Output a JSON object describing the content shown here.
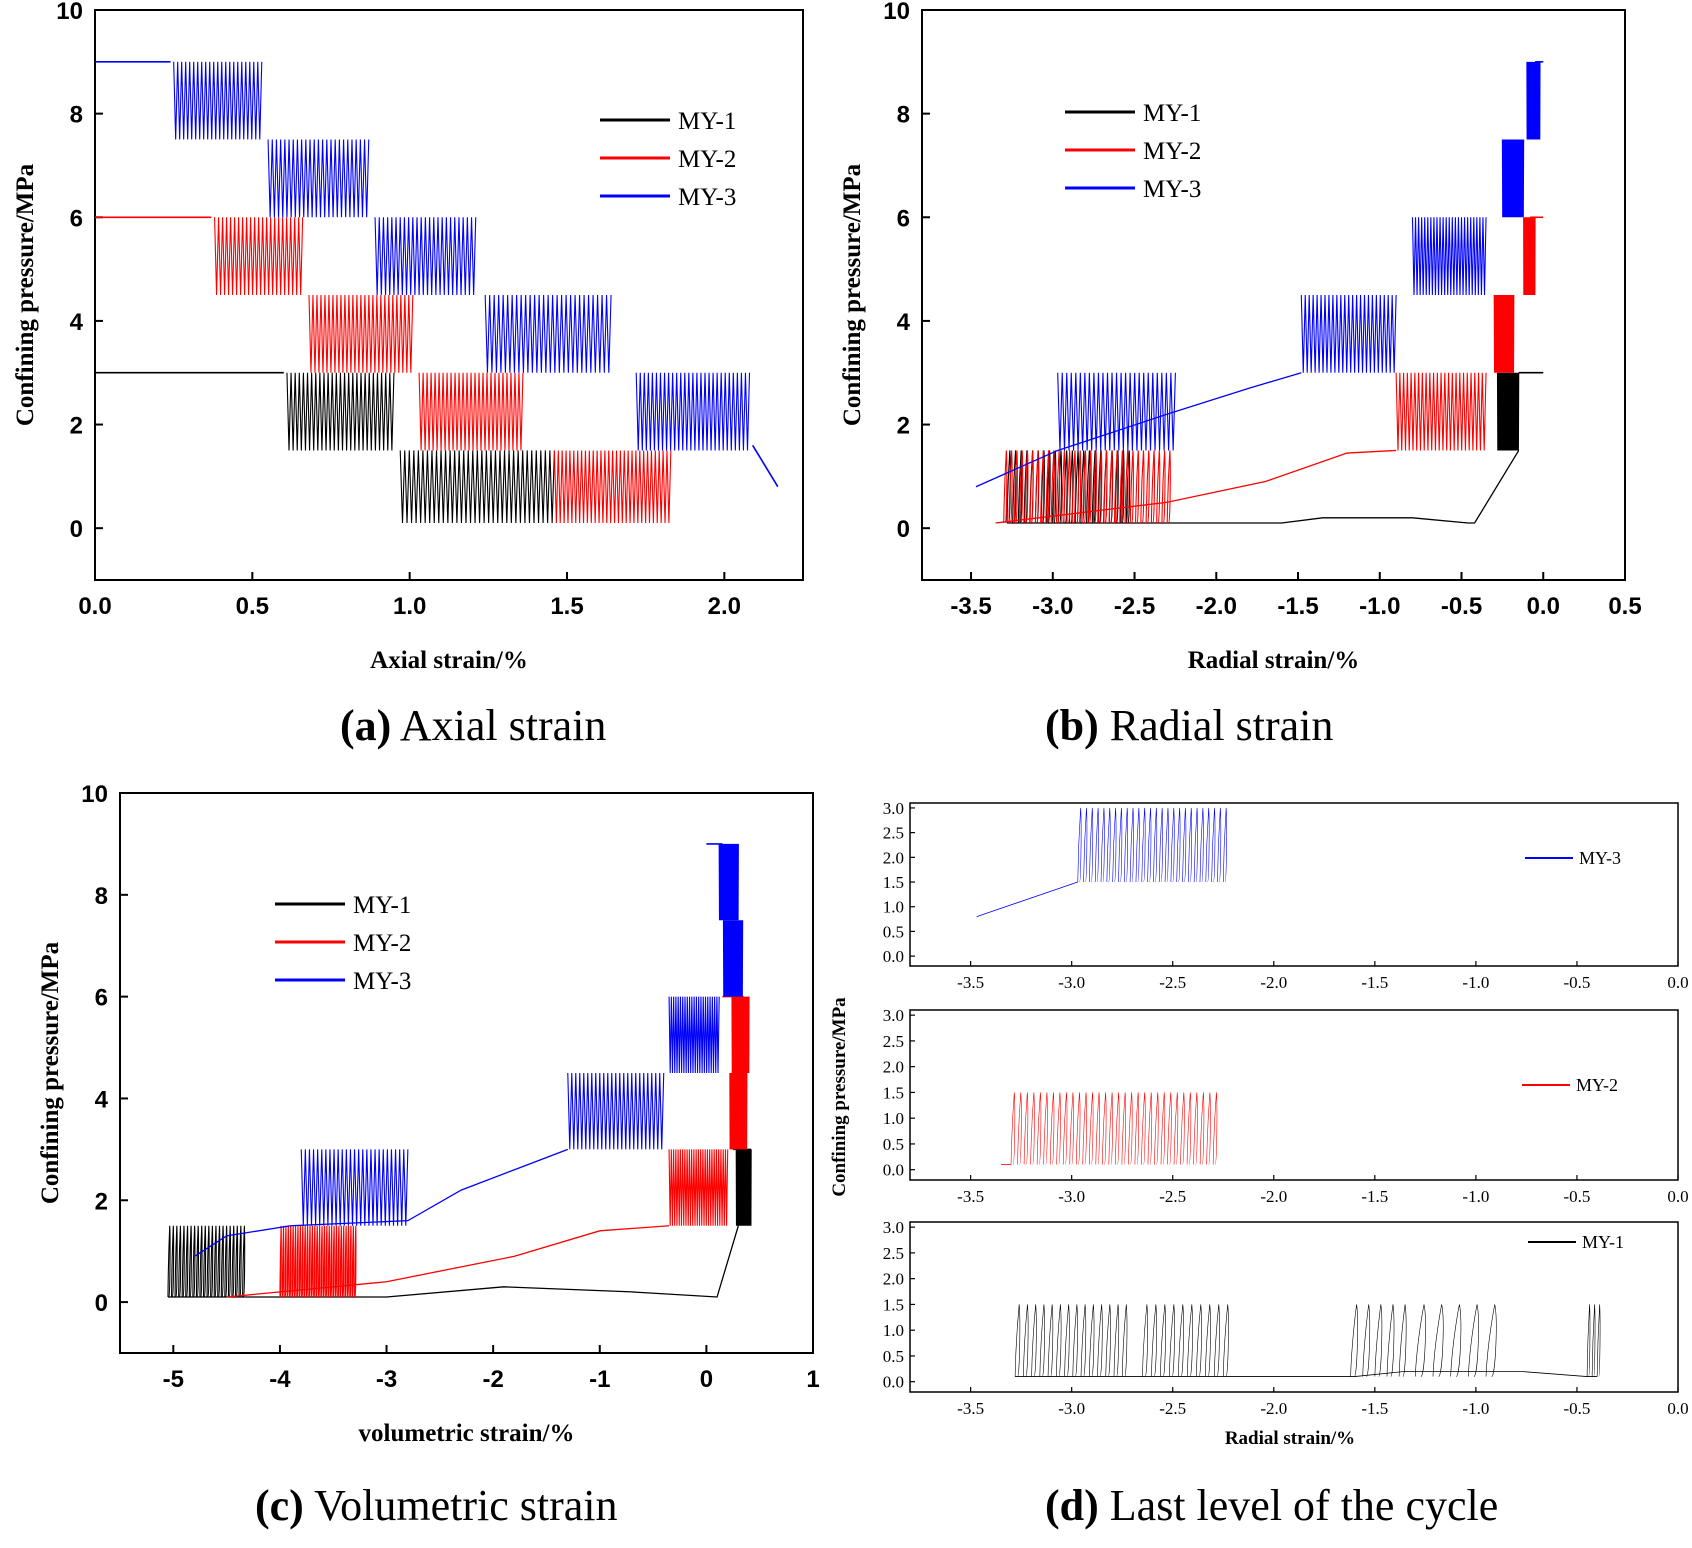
{
  "figure": {
    "captions": {
      "a": {
        "letter": "(a)",
        "text": "Axial strain"
      },
      "b": {
        "letter": "(b)",
        "text": "Radial strain"
      },
      "c": {
        "letter": "(c)",
        "text": "Volumetric strain"
      },
      "d": {
        "letter": "(d)",
        "text": "Last level of the cycle"
      }
    },
    "colors": {
      "MY-1": "#000000",
      "MY-2": "#ff0000",
      "MY-3": "#0000ff"
    }
  },
  "chart_data": [
    {
      "id": "a",
      "type": "line",
      "title": "(a) Axial strain",
      "xlabel": "Axial strain/%",
      "ylabel": "Confining pressure/MPa",
      "xlim": [
        0,
        2.25
      ],
      "ylim": [
        -1,
        10
      ],
      "xticks": [
        0.0,
        0.5,
        1.0,
        1.5,
        2.0
      ],
      "xtick_labels": [
        "0.0",
        "0.5",
        "1.0",
        "1.5",
        "2.0"
      ],
      "yticks": [
        0,
        2,
        4,
        6,
        8,
        10
      ],
      "ytick_labels": [
        "0",
        "2",
        "4",
        "6",
        "8",
        "10"
      ],
      "legend": [
        "MY-1",
        "MY-2",
        "MY-3"
      ],
      "legend_position": "top-right",
      "series": [
        {
          "name": "MY-1",
          "color": "#000000",
          "initial": [
            [
              0,
              3.0
            ],
            [
              0.6,
              3.0
            ]
          ],
          "stages": [
            {
              "x0": 0.61,
              "x1": 0.95,
              "lo": 1.5,
              "hi": 3.0,
              "n": 26
            },
            {
              "x0": 0.97,
              "x1": 1.46,
              "lo": 0.1,
              "hi": 1.5,
              "n": 34
            }
          ]
        },
        {
          "name": "MY-2",
          "color": "#ff0000",
          "initial": [
            [
              0,
              6.0
            ],
            [
              0.37,
              6.0
            ]
          ],
          "stages": [
            {
              "x0": 0.38,
              "x1": 0.66,
              "lo": 4.5,
              "hi": 6.0,
              "n": 22
            },
            {
              "x0": 0.68,
              "x1": 1.01,
              "lo": 3.0,
              "hi": 4.5,
              "n": 26
            },
            {
              "x0": 1.03,
              "x1": 1.36,
              "lo": 1.5,
              "hi": 3.0,
              "n": 26
            },
            {
              "x0": 1.46,
              "x1": 1.83,
              "lo": 0.1,
              "hi": 1.5,
              "n": 30
            }
          ]
        },
        {
          "name": "MY-3",
          "color": "#0000ff",
          "initial": [
            [
              0,
              9.0
            ],
            [
              0.24,
              9.0
            ]
          ],
          "stages": [
            {
              "x0": 0.25,
              "x1": 0.53,
              "lo": 7.5,
              "hi": 9.0,
              "n": 22
            },
            {
              "x0": 0.55,
              "x1": 0.87,
              "lo": 6.0,
              "hi": 7.5,
              "n": 24
            },
            {
              "x0": 0.89,
              "x1": 1.21,
              "lo": 4.5,
              "hi": 6.0,
              "n": 24
            },
            {
              "x0": 1.24,
              "x1": 1.64,
              "lo": 3.0,
              "hi": 4.5,
              "n": 28
            },
            {
              "x0": 1.72,
              "x1": 2.08,
              "lo": 1.5,
              "hi": 3.0,
              "n": 28
            }
          ],
          "final": [
            [
              2.09,
              1.6
            ],
            [
              2.17,
              0.8
            ]
          ]
        }
      ]
    },
    {
      "id": "b",
      "type": "line",
      "title": "(b) Radial strain",
      "xlabel": "Radial strain/%",
      "ylabel": "Confining pressure/MPa",
      "xlim": [
        -3.8,
        0.5
      ],
      "ylim": [
        -1,
        10
      ],
      "xticks": [
        -3.5,
        -3.0,
        -2.5,
        -2.0,
        -1.5,
        -1.0,
        -0.5,
        0.0,
        0.5
      ],
      "xtick_labels": [
        "-3.5",
        "-3.0",
        "-2.5",
        "-2.0",
        "-1.5",
        "-1.0",
        "-0.5",
        "0.0",
        "0.5"
      ],
      "yticks": [
        0,
        2,
        4,
        6,
        8,
        10
      ],
      "ytick_labels": [
        "0",
        "2",
        "4",
        "6",
        "8",
        "10"
      ],
      "legend": [
        "MY-1",
        "MY-2",
        "MY-3"
      ],
      "legend_position": "top-left",
      "series": [
        {
          "name": "MY-1",
          "color": "#000000",
          "initial": [
            [
              0,
              3.0
            ],
            [
              -0.15,
              3.0
            ]
          ],
          "stages": [
            {
              "x0": -0.28,
              "x1": -0.15,
              "lo": 1.5,
              "hi": 3.0,
              "n": 30
            },
            {
              "x0": -3.28,
              "x1": -2.55,
              "lo": 0.1,
              "hi": 1.5,
              "n": 22
            }
          ],
          "connect": [
            [
              -0.15,
              1.5
            ],
            [
              -0.42,
              0.1
            ],
            [
              -0.46,
              0.1
            ],
            [
              -0.8,
              0.2
            ],
            [
              -1.35,
              0.2
            ],
            [
              -1.6,
              0.1
            ],
            [
              -2.3,
              0.1
            ],
            [
              -3.28,
              0.1
            ]
          ]
        },
        {
          "name": "MY-2",
          "color": "#ff0000",
          "initial": [
            [
              0,
              6.0
            ],
            [
              -0.08,
              6.0
            ]
          ],
          "stages": [
            {
              "x0": -0.12,
              "x1": -0.05,
              "lo": 4.5,
              "hi": 6.0,
              "n": 30
            },
            {
              "x0": -0.3,
              "x1": -0.18,
              "lo": 3.0,
              "hi": 4.5,
              "n": 30
            },
            {
              "x0": -0.9,
              "x1": -0.35,
              "lo": 1.5,
              "hi": 3.0,
              "n": 24
            },
            {
              "x0": -3.3,
              "x1": -2.3,
              "lo": 0.1,
              "hi": 1.5,
              "n": 32
            }
          ],
          "connect": [
            [
              -0.9,
              1.5
            ],
            [
              -1.2,
              1.45
            ],
            [
              -1.7,
              0.9
            ],
            [
              -2.3,
              0.5
            ],
            [
              -3.35,
              0.1
            ]
          ]
        },
        {
          "name": "MY-3",
          "color": "#0000ff",
          "initial": [
            [
              0,
              9.0
            ],
            [
              -0.05,
              9.0
            ]
          ],
          "stages": [
            {
              "x0": -0.1,
              "x1": -0.02,
              "lo": 7.5,
              "hi": 9.0,
              "n": 30
            },
            {
              "x0": -0.25,
              "x1": -0.12,
              "lo": 6.0,
              "hi": 7.5,
              "n": 30
            },
            {
              "x0": -0.8,
              "x1": -0.35,
              "lo": 4.5,
              "hi": 6.0,
              "n": 24
            },
            {
              "x0": -1.48,
              "x1": -0.9,
              "lo": 3.0,
              "hi": 4.5,
              "n": 24
            },
            {
              "x0": -2.97,
              "x1": -2.25,
              "lo": 1.5,
              "hi": 3.0,
              "n": 26
            }
          ],
          "connect": [
            [
              -1.48,
              3.0
            ],
            [
              -1.8,
              2.7
            ],
            [
              -2.3,
              2.2
            ],
            [
              -2.97,
              1.5
            ],
            [
              -3.47,
              0.8
            ]
          ]
        }
      ]
    },
    {
      "id": "c",
      "type": "line",
      "title": "(c) Volumetric strain",
      "xlabel": "volumetric strain/%",
      "ylabel": "Confining pressure/MPa",
      "xlim": [
        -5.5,
        1
      ],
      "ylim": [
        -1,
        10
      ],
      "xticks": [
        -5,
        -4,
        -3,
        -2,
        -1,
        0,
        1
      ],
      "xtick_labels": [
        "-5",
        "-4",
        "-3",
        "-2",
        "-1",
        "0",
        "1"
      ],
      "yticks": [
        0,
        2,
        4,
        6,
        8,
        10
      ],
      "ytick_labels": [
        "0",
        "2",
        "4",
        "6",
        "8",
        "10"
      ],
      "legend": [
        "MY-1",
        "MY-2",
        "MY-3"
      ],
      "legend_position": "upper-left",
      "series": [
        {
          "name": "MY-1",
          "color": "#000000",
          "initial": [
            [
              0.25,
              3.0
            ],
            [
              0.42,
              3.0
            ]
          ],
          "stages": [
            {
              "x0": 0.28,
              "x1": 0.42,
              "lo": 1.5,
              "hi": 3.0,
              "n": 30
            },
            {
              "x0": -5.05,
              "x1": -4.35,
              "lo": 0.1,
              "hi": 1.5,
              "n": 22
            }
          ],
          "connect": [
            [
              0.3,
              1.5
            ],
            [
              0.1,
              0.1
            ],
            [
              -0.7,
              0.2
            ],
            [
              -1.9,
              0.3
            ],
            [
              -3.0,
              0.1
            ],
            [
              -5.05,
              0.1
            ]
          ]
        },
        {
          "name": "MY-2",
          "color": "#ff0000",
          "initial": [
            [
              0.35,
              6.0
            ],
            [
              0.15,
              6.0
            ]
          ],
          "stages": [
            {
              "x0": 0.24,
              "x1": 0.4,
              "lo": 4.5,
              "hi": 6.0,
              "n": 30
            },
            {
              "x0": 0.22,
              "x1": 0.38,
              "lo": 3.0,
              "hi": 4.5,
              "n": 30
            },
            {
              "x0": -0.35,
              "x1": 0.2,
              "lo": 1.5,
              "hi": 3.0,
              "n": 26
            },
            {
              "x0": -4.0,
              "x1": -3.3,
              "lo": 0.1,
              "hi": 1.5,
              "n": 32
            }
          ],
          "connect": [
            [
              -0.35,
              1.5
            ],
            [
              -1.0,
              1.4
            ],
            [
              -1.8,
              0.9
            ],
            [
              -3.0,
              0.4
            ],
            [
              -4.5,
              0.1
            ]
          ]
        },
        {
          "name": "MY-3",
          "color": "#0000ff",
          "initial": [
            [
              0.0,
              9.0
            ],
            [
              0.15,
              9.0
            ]
          ],
          "stages": [
            {
              "x0": 0.12,
              "x1": 0.3,
              "lo": 7.5,
              "hi": 9.0,
              "n": 30
            },
            {
              "x0": 0.16,
              "x1": 0.34,
              "lo": 6.0,
              "hi": 7.5,
              "n": 30
            },
            {
              "x0": -0.35,
              "x1": 0.12,
              "lo": 4.5,
              "hi": 6.0,
              "n": 22
            },
            {
              "x0": -1.3,
              "x1": -0.4,
              "lo": 3.0,
              "hi": 4.5,
              "n": 24
            },
            {
              "x0": -3.8,
              "x1": -2.8,
              "lo": 1.5,
              "hi": 3.0,
              "n": 26
            }
          ],
          "connect": [
            [
              -1.3,
              3.0
            ],
            [
              -1.8,
              2.6
            ],
            [
              -2.3,
              2.2
            ],
            [
              -2.8,
              1.6
            ],
            [
              -3.9,
              1.5
            ],
            [
              -4.5,
              1.3
            ],
            [
              -4.8,
              0.9
            ]
          ]
        }
      ]
    },
    {
      "id": "d",
      "type": "line",
      "title": "(d) Last level of the cycle",
      "xlabel": "Radial strain/%",
      "ylabel": "Confining pressure/MPa",
      "subplots": [
        {
          "name": "MY-3",
          "color": "#0000ff",
          "xlim": [
            -3.8,
            0
          ],
          "ylim": [
            -0.2,
            3.1
          ],
          "xticks": [
            -3.5,
            -3.0,
            -2.5,
            -2.0,
            -1.5,
            -1.0,
            -0.5,
            0.0
          ],
          "xtick_labels": [
            "-3.5",
            "-3.0",
            "-2.5",
            "-2.0",
            "-1.5",
            "-1.0",
            "-0.5",
            "0.0"
          ],
          "yticks": [
            0.0,
            0.5,
            1.0,
            1.5,
            2.0,
            2.5,
            3.0
          ],
          "ytick_labels": [
            "0.0",
            "0.5",
            "1.0",
            "1.5",
            "2.0",
            "2.5",
            "3.0"
          ],
          "stages": [
            {
              "x0": -2.97,
              "x1": -2.25,
              "lo": 1.5,
              "hi": 3.0,
              "n": 26
            }
          ],
          "connect": [
            [
              -2.97,
              1.5
            ],
            [
              -3.47,
              0.8
            ]
          ]
        },
        {
          "name": "MY-2",
          "color": "#ff0000",
          "xlim": [
            -3.8,
            0
          ],
          "ylim": [
            -0.2,
            3.1
          ],
          "xticks": [
            -3.5,
            -3.0,
            -2.5,
            -2.0,
            -1.5,
            -1.0,
            -0.5,
            0.0
          ],
          "xtick_labels": [
            "-3.5",
            "-3.0",
            "-2.5",
            "-2.0",
            "-1.5",
            "-1.0",
            "-0.5",
            "0.0"
          ],
          "yticks": [
            0.0,
            0.5,
            1.0,
            1.5,
            2.0,
            2.5,
            3.0
          ],
          "ytick_labels": [
            "0.0",
            "0.5",
            "1.0",
            "1.5",
            "2.0",
            "2.5",
            "3.0"
          ],
          "stages": [
            {
              "x0": -3.3,
              "x1": -2.3,
              "lo": 0.1,
              "hi": 1.5,
              "n": 32
            }
          ],
          "connect": [
            [
              -3.35,
              0.1
            ],
            [
              -3.3,
              0.1
            ]
          ]
        },
        {
          "name": "MY-1",
          "color": "#000000",
          "xlim": [
            -3.8,
            0
          ],
          "ylim": [
            -0.2,
            3.1
          ],
          "xticks": [
            -3.5,
            -3.0,
            -2.5,
            -2.0,
            -1.5,
            -1.0,
            -0.5,
            0.0
          ],
          "xtick_labels": [
            "-3.5",
            "-3.0",
            "-2.5",
            "-2.0",
            "-1.5",
            "-1.0",
            "-0.5",
            "0.0"
          ],
          "yticks": [
            0.0,
            0.5,
            1.0,
            1.5,
            2.0,
            2.5,
            3.0
          ],
          "ytick_labels": [
            "0.0",
            "0.5",
            "1.0",
            "1.5",
            "2.0",
            "2.5",
            "3.0"
          ],
          "loops": [
            {
              "x0": -3.28,
              "x1": -2.75,
              "lo": 0.1,
              "hi": 1.5,
              "n": 14
            },
            {
              "x0": -2.65,
              "x1": -2.25,
              "lo": 0.1,
              "hi": 1.5,
              "n": 10
            },
            {
              "x0": -1.62,
              "x1": -1.38,
              "lo": 0.1,
              "hi": 1.5,
              "n": 5
            },
            {
              "x0": -1.3,
              "x1": -0.95,
              "lo": 0.1,
              "hi": 1.5,
              "n": 5
            },
            {
              "x0": -0.45,
              "x1": -0.4,
              "lo": 0.1,
              "hi": 1.5,
              "n": 3
            }
          ],
          "connect": [
            [
              -0.4,
              0.1
            ],
            [
              -0.45,
              0.1
            ],
            [
              -0.78,
              0.2
            ],
            [
              -1.35,
              0.2
            ],
            [
              -1.6,
              0.1
            ],
            [
              -2.3,
              0.1
            ],
            [
              -3.28,
              0.1
            ]
          ]
        }
      ]
    }
  ]
}
